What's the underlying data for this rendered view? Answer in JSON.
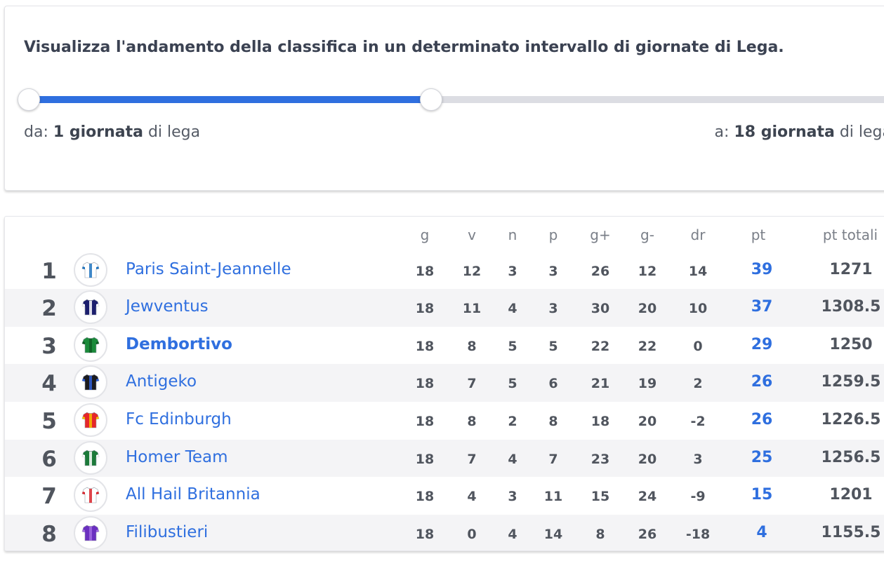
{
  "filter": {
    "title": "Visualizza l'andamento della classifica in un determinato intervallo di giornate di Lega.",
    "slider": {
      "min": 1,
      "max": 38,
      "from": 1,
      "to": 18
    },
    "from_prefix": "da: ",
    "from_value": "1 giornata",
    "from_suffix": " di lega",
    "to_prefix": "a: ",
    "to_value": "18 giornata",
    "to_suffix": " di lega"
  },
  "table": {
    "columns": {
      "g": "g",
      "v": "v",
      "n": "n",
      "p": "p",
      "gplus": "g+",
      "gminus": "g-",
      "dr": "dr",
      "pt": "pt",
      "pt_totali": "pt totali"
    },
    "rows": [
      {
        "pos": "1",
        "team": "Paris Saint-Jeannelle",
        "kit": "paris-kit-icon",
        "kit_colors": [
          "#ffffff",
          "#1e73be"
        ],
        "g": "18",
        "v": "12",
        "n": "3",
        "p": "3",
        "gplus": "26",
        "gminus": "12",
        "dr": "14",
        "pt": "39",
        "pt_totali": "1271"
      },
      {
        "pos": "2",
        "team": "Jewventus",
        "kit": "jewventus-kit-icon",
        "kit_colors": [
          "#1c1f6e",
          "#ffffff"
        ],
        "g": "18",
        "v": "11",
        "n": "4",
        "p": "3",
        "gplus": "30",
        "gminus": "20",
        "dr": "10",
        "pt": "37",
        "pt_totali": "1308.5"
      },
      {
        "pos": "3",
        "team": "Dembortivo",
        "kit": "dembortivo-kit-icon",
        "kit_colors": [
          "#1a8a3a",
          "#0f5c25"
        ],
        "g": "18",
        "v": "8",
        "n": "5",
        "p": "5",
        "gplus": "22",
        "gminus": "22",
        "dr": "0",
        "pt": "29",
        "pt_totali": "1250"
      },
      {
        "pos": "4",
        "team": "Antigeko",
        "kit": "antigeko-kit-icon",
        "kit_colors": [
          "#1b1b1f",
          "#2f5fd8"
        ],
        "g": "18",
        "v": "7",
        "n": "5",
        "p": "6",
        "gplus": "21",
        "gminus": "19",
        "dr": "2",
        "pt": "26",
        "pt_totali": "1259.5"
      },
      {
        "pos": "5",
        "team": "Fc Edinburgh",
        "kit": "edinburgh-kit-icon",
        "kit_colors": [
          "#e5262a",
          "#f3c200"
        ],
        "g": "18",
        "v": "8",
        "n": "2",
        "p": "8",
        "gplus": "18",
        "gminus": "20",
        "dr": "-2",
        "pt": "26",
        "pt_totali": "1226.5"
      },
      {
        "pos": "6",
        "team": "Homer Team",
        "kit": "homer-team-kit-icon",
        "kit_colors": [
          "#1c7a3a",
          "#ffffff"
        ],
        "g": "18",
        "v": "7",
        "n": "4",
        "p": "7",
        "gplus": "23",
        "gminus": "20",
        "dr": "3",
        "pt": "25",
        "pt_totali": "1256.5"
      },
      {
        "pos": "7",
        "team": "All Hail Britannia",
        "kit": "britannia-kit-icon",
        "kit_colors": [
          "#ffffff",
          "#d8232a"
        ],
        "g": "18",
        "v": "4",
        "n": "3",
        "p": "11",
        "gplus": "15",
        "gminus": "24",
        "dr": "-9",
        "pt": "15",
        "pt_totali": "1201"
      },
      {
        "pos": "8",
        "team": "Filibustieri",
        "kit": "filibustieri-kit-icon",
        "kit_colors": [
          "#6a2fc0",
          "#a06be0"
        ],
        "g": "18",
        "v": "0",
        "n": "4",
        "p": "14",
        "gplus": "8",
        "gminus": "26",
        "dr": "-18",
        "pt": "4",
        "pt_totali": "1155.5"
      }
    ],
    "highlight_team_index": 2,
    "accent_color": "#2f6fdf"
  }
}
